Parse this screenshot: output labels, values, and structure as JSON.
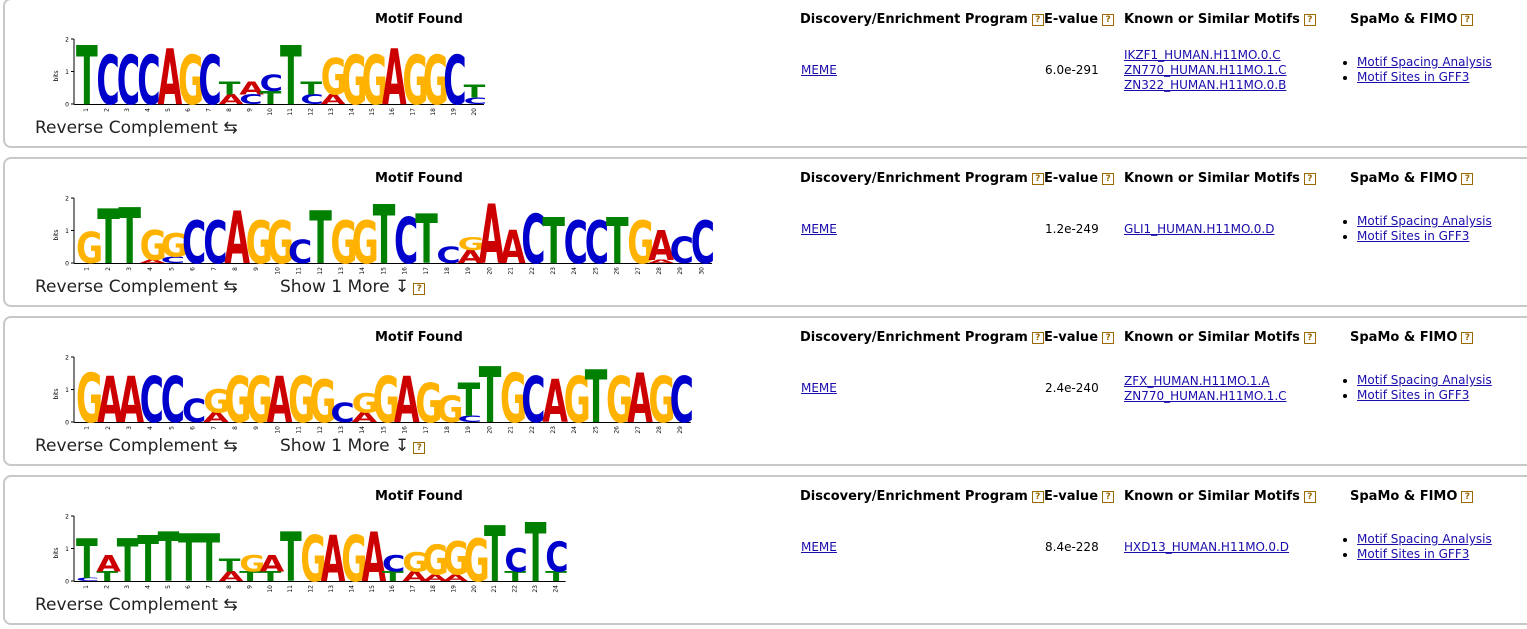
{
  "headers": {
    "motif_found": "Motif Found",
    "program": "Discovery/Enrichment Program",
    "evalue": "E-value",
    "known": "Known or Similar Motifs",
    "spamo": "SpaMo & FIMO",
    "help": "?"
  },
  "axis": {
    "ylabel": "bits",
    "ticks": [
      "0",
      "1",
      "2"
    ]
  },
  "reverse_complement_label": "Reverse Complement ⇆",
  "show_more_label": "Show 1 More ↧",
  "colors": {
    "A": "#cc0000",
    "C": "#0000cc",
    "G": "#ffb300",
    "T": "#008000"
  },
  "motifs": [
    {
      "program": "MEME",
      "evalue": "6.0e-291",
      "known": [
        "IKZF1_HUMAN.H11MO.0.C",
        "ZN770_HUMAN.H11MO.1.C",
        "ZN322_HUMAN.H11MO.0.B"
      ],
      "links": [
        "Motif Spacing Analysis",
        "Motif Sites in GFF3"
      ],
      "show_more": false,
      "columns": [
        [
          [
            "T",
            1.8
          ]
        ],
        [
          [
            "C",
            1.5
          ]
        ],
        [
          [
            "C",
            1.5
          ]
        ],
        [
          [
            "C",
            1.5
          ]
        ],
        [
          [
            "A",
            1.7
          ]
        ],
        [
          [
            "G",
            1.5
          ]
        ],
        [
          [
            "C",
            1.5
          ]
        ],
        [
          [
            "A",
            0.3
          ],
          [
            "T",
            0.4
          ]
        ],
        [
          [
            "C",
            0.3
          ],
          [
            "A",
            0.4
          ]
        ],
        [
          [
            "T",
            0.4
          ],
          [
            "C",
            0.5
          ]
        ],
        [
          [
            "T",
            1.8
          ]
        ],
        [
          [
            "C",
            0.3
          ],
          [
            "T",
            0.4
          ]
        ],
        [
          [
            "A",
            0.3
          ],
          [
            "G",
            1.1
          ]
        ],
        [
          [
            "G",
            1.5
          ]
        ],
        [
          [
            "G",
            1.5
          ]
        ],
        [
          [
            "A",
            1.7
          ]
        ],
        [
          [
            "G",
            1.5
          ]
        ],
        [
          [
            "G",
            1.5
          ]
        ],
        [
          [
            "C",
            1.5
          ]
        ],
        [
          [
            "C",
            0.2
          ],
          [
            "T",
            0.4
          ]
        ]
      ]
    },
    {
      "program": "MEME",
      "evalue": "1.2e-249",
      "known": [
        "GLI1_HUMAN.H11MO.0.D"
      ],
      "links": [
        "Motif Spacing Analysis",
        "Motif Sites in GFF3"
      ],
      "show_more": true,
      "columns": [
        [
          [
            "G",
            0.95
          ]
        ],
        [
          [
            "T",
            1.65
          ]
        ],
        [
          [
            "T",
            1.7
          ]
        ],
        [
          [
            "A",
            0.1
          ],
          [
            "G",
            0.9
          ]
        ],
        [
          [
            "C",
            0.2
          ],
          [
            "G",
            0.7
          ]
        ],
        [
          [
            "C",
            1.3
          ]
        ],
        [
          [
            "C",
            1.3
          ]
        ],
        [
          [
            "A",
            1.6
          ]
        ],
        [
          [
            "G",
            1.3
          ]
        ],
        [
          [
            "G",
            1.3
          ]
        ],
        [
          [
            "C",
            0.7
          ]
        ],
        [
          [
            "T",
            1.6
          ]
        ],
        [
          [
            "G",
            1.3
          ]
        ],
        [
          [
            "G",
            1.3
          ]
        ],
        [
          [
            "T",
            1.8
          ]
        ],
        [
          [
            "C",
            1.4
          ]
        ],
        [
          [
            "T",
            1.5
          ]
        ],
        [
          [
            "C",
            0.5
          ]
        ],
        [
          [
            "A",
            0.4
          ],
          [
            "G",
            0.4
          ]
        ],
        [
          [
            "A",
            1.8
          ]
        ],
        [
          [
            "A",
            1.0
          ]
        ],
        [
          [
            "C",
            1.5
          ]
        ],
        [
          [
            "T",
            1.4
          ]
        ],
        [
          [
            "C",
            1.3
          ]
        ],
        [
          [
            "C",
            1.3
          ]
        ],
        [
          [
            "T",
            1.4
          ]
        ],
        [
          [
            "G",
            1.3
          ]
        ],
        [
          [
            "A",
            0.1
          ],
          [
            "A",
            0.9
          ]
        ],
        [
          [
            "C",
            0.8
          ]
        ],
        [
          [
            "C",
            1.3
          ]
        ]
      ]
    },
    {
      "program": "MEME",
      "evalue": "2.4e-240",
      "known": [
        "ZFX_HUMAN.H11MO.1.A",
        "ZN770_HUMAN.H11MO.1.C"
      ],
      "links": [
        "Motif Spacing Analysis",
        "Motif Sites in GFF3"
      ],
      "show_more": true,
      "columns": [
        [
          [
            "G",
            1.5
          ]
        ],
        [
          [
            "A",
            1.4
          ]
        ],
        [
          [
            "A",
            1.4
          ]
        ],
        [
          [
            "C",
            1.4
          ]
        ],
        [
          [
            "C",
            1.4
          ]
        ],
        [
          [
            "C",
            0.7
          ]
        ],
        [
          [
            "A",
            0.3
          ],
          [
            "G",
            0.7
          ]
        ],
        [
          [
            "G",
            1.4
          ]
        ],
        [
          [
            "G",
            1.4
          ]
        ],
        [
          [
            "A",
            1.4
          ]
        ],
        [
          [
            "G",
            1.4
          ]
        ],
        [
          [
            "G",
            1.3
          ]
        ],
        [
          [
            "C",
            0.6
          ]
        ],
        [
          [
            "A",
            0.3
          ],
          [
            "G",
            0.6
          ]
        ],
        [
          [
            "G",
            1.4
          ]
        ],
        [
          [
            "A",
            1.4
          ]
        ],
        [
          [
            "G",
            1.2
          ]
        ],
        [
          [
            "G",
            0.8
          ]
        ],
        [
          [
            "C",
            0.2
          ],
          [
            "T",
            1.0
          ]
        ],
        [
          [
            "T",
            1.7
          ]
        ],
        [
          [
            "G",
            1.5
          ]
        ],
        [
          [
            "C",
            1.4
          ]
        ],
        [
          [
            "A",
            1.3
          ]
        ],
        [
          [
            "G",
            1.4
          ]
        ],
        [
          [
            "T",
            1.6
          ]
        ],
        [
          [
            "G",
            1.4
          ]
        ],
        [
          [
            "A",
            1.5
          ]
        ],
        [
          [
            "G",
            1.4
          ]
        ],
        [
          [
            "C",
            1.4
          ]
        ]
      ]
    },
    {
      "program": "MEME",
      "evalue": "8.4e-228",
      "known": [
        "HXD13_HUMAN.H11MO.0.D"
      ],
      "links": [
        "Motif Spacing Analysis",
        "Motif Sites in GFF3"
      ],
      "show_more": false,
      "columns": [
        [
          [
            "C",
            0.1
          ],
          [
            "T",
            1.2
          ]
        ],
        [
          [
            "T",
            0.3
          ],
          [
            "A",
            0.5
          ]
        ],
        [
          [
            "T",
            1.3
          ]
        ],
        [
          [
            "T",
            1.4
          ]
        ],
        [
          [
            "T",
            1.5
          ]
        ],
        [
          [
            "T",
            1.45
          ]
        ],
        [
          [
            "T",
            1.45
          ]
        ],
        [
          [
            "A",
            0.3
          ],
          [
            "T",
            0.4
          ]
        ],
        [
          [
            "T",
            0.3
          ],
          [
            "G",
            0.5
          ]
        ],
        [
          [
            "T",
            0.3
          ],
          [
            "A",
            0.5
          ]
        ],
        [
          [
            "T",
            1.5
          ]
        ],
        [
          [
            "G",
            1.4
          ]
        ],
        [
          [
            "A",
            1.4
          ]
        ],
        [
          [
            "G",
            1.4
          ]
        ],
        [
          [
            "A",
            1.5
          ]
        ],
        [
          [
            "T",
            0.3
          ],
          [
            "C",
            0.5
          ]
        ],
        [
          [
            "A",
            0.3
          ],
          [
            "G",
            0.6
          ]
        ],
        [
          [
            "A",
            0.2
          ],
          [
            "G",
            0.9
          ]
        ],
        [
          [
            "A",
            0.2
          ],
          [
            "G",
            1.0
          ]
        ],
        [
          [
            "G",
            1.3
          ]
        ],
        [
          [
            "T",
            1.7
          ]
        ],
        [
          [
            "T",
            0.3
          ],
          [
            "C",
            0.7
          ]
        ],
        [
          [
            "T",
            1.8
          ]
        ],
        [
          [
            "T",
            0.3
          ],
          [
            "C",
            0.9
          ]
        ]
      ]
    }
  ]
}
